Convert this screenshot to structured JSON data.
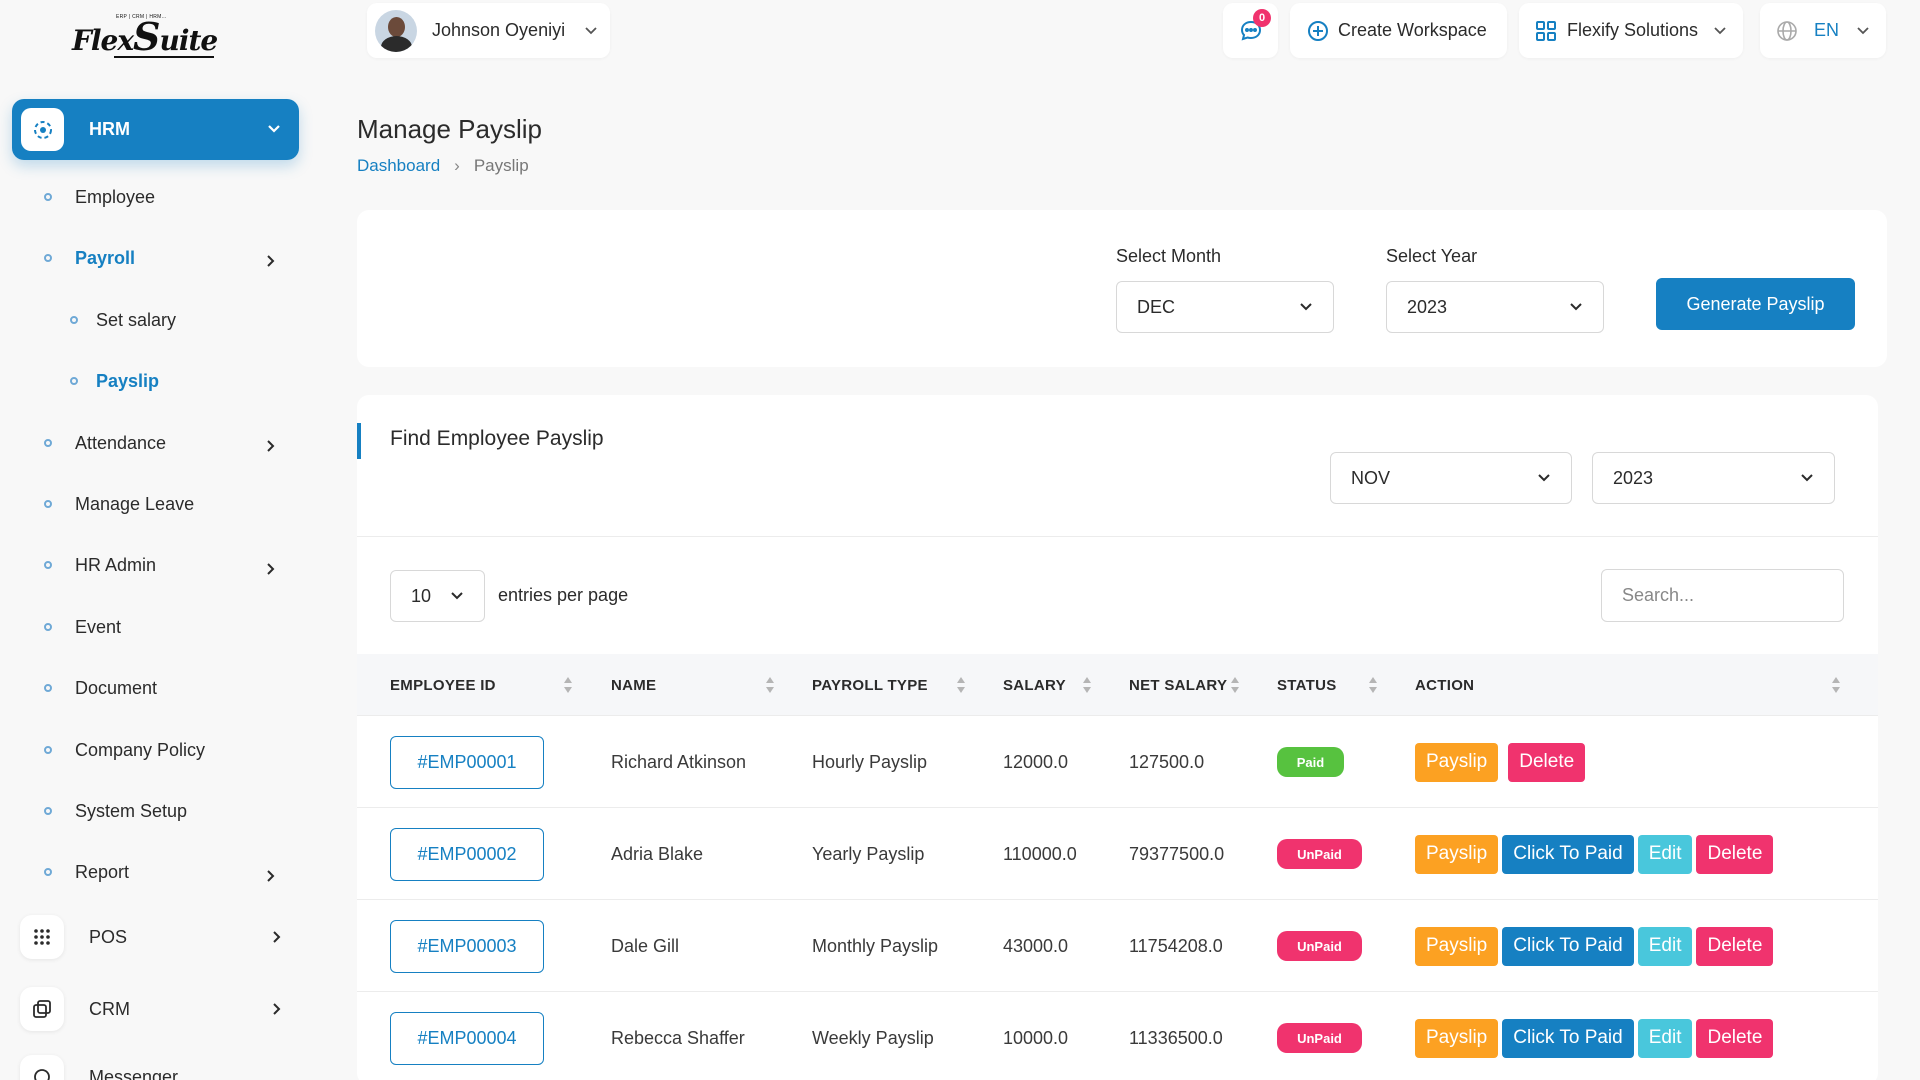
{
  "app": {
    "logo_text": "FlexSuite",
    "logo_subtext": "ERP | CRM | HRM ..."
  },
  "header": {
    "user_name": "Johnson Oyeniyi",
    "notification_count": "0",
    "create_workspace_label": "Create Workspace",
    "workspace_name": "Flexify Solutions",
    "language": "EN"
  },
  "sidebar": {
    "module": "HRM",
    "items": [
      {
        "label": "Employee"
      },
      {
        "label": "Payroll"
      },
      {
        "label": "Set salary"
      },
      {
        "label": "Payslip"
      },
      {
        "label": "Attendance"
      },
      {
        "label": "Manage Leave"
      },
      {
        "label": "HR Admin"
      },
      {
        "label": "Event"
      },
      {
        "label": "Document"
      },
      {
        "label": "Company Policy"
      },
      {
        "label": "System Setup"
      },
      {
        "label": "Report"
      }
    ],
    "modules": [
      {
        "label": "POS"
      },
      {
        "label": "CRM"
      },
      {
        "label": "Messenger"
      }
    ]
  },
  "page": {
    "title": "Manage Payslip",
    "breadcrumb": {
      "home": "Dashboard",
      "current": "Payslip"
    }
  },
  "generate": {
    "month_label": "Select Month",
    "month_value": "DEC",
    "year_label": "Select Year",
    "year_value": "2023",
    "button_label": "Generate Payslip"
  },
  "find": {
    "title": "Find Employee Payslip",
    "month_value": "NOV",
    "year_value": "2023",
    "entries_value": "10",
    "entries_label": "entries per page",
    "search_placeholder": "Search..."
  },
  "table": {
    "columns": [
      "EMPLOYEE ID",
      "NAME",
      "PAYROLL TYPE",
      "SALARY",
      "NET SALARY",
      "STATUS",
      "ACTION"
    ],
    "rows": [
      {
        "id": "#EMP00001",
        "name": "Richard Atkinson",
        "type": "Hourly Payslip",
        "salary": "12000.0",
        "net": "127500.0",
        "status": "Paid"
      },
      {
        "id": "#EMP00002",
        "name": "Adria Blake",
        "type": "Yearly Payslip",
        "salary": "110000.0",
        "net": "79377500.0",
        "status": "UnPaid"
      },
      {
        "id": "#EMP00003",
        "name": "Dale Gill",
        "type": "Monthly Payslip",
        "salary": "43000.0",
        "net": "11754208.0",
        "status": "UnPaid"
      },
      {
        "id": "#EMP00004",
        "name": "Rebecca Shaffer",
        "type": "Weekly Payslip",
        "salary": "10000.0",
        "net": "11336500.0",
        "status": "UnPaid"
      }
    ],
    "actions": {
      "payslip": "Payslip",
      "click_to_paid": "Click To Paid",
      "edit": "Edit",
      "delete": "Delete"
    }
  },
  "colors": {
    "primary": "#1680c2",
    "paid": "#57c23f",
    "unpaid": "#f0336e",
    "payslip": "#fca122",
    "edit": "#49c7dc"
  }
}
